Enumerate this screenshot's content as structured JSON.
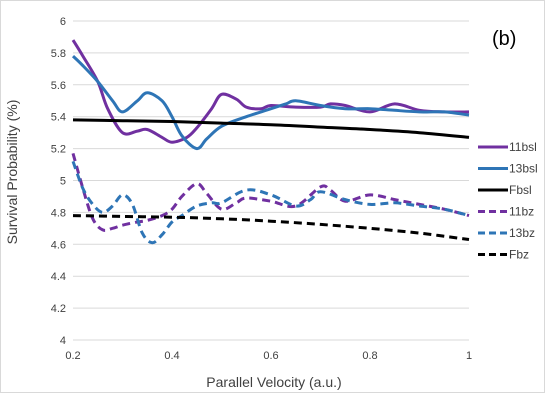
{
  "chart_data": {
    "type": "line",
    "panel_label": "(b)",
    "xlabel": "Parallel Velocity (a.u.)",
    "ylabel": "Survival Probability (%)",
    "xlim": [
      0.2,
      1.0
    ],
    "ylim": [
      4.0,
      6.0
    ],
    "x_ticks": [
      0.2,
      0.4,
      0.6,
      0.8,
      1.0
    ],
    "x_tick_labels": [
      "0.2",
      "0.4",
      "0.6",
      "0.8",
      "1"
    ],
    "y_ticks": [
      4.0,
      4.2,
      4.4,
      4.6,
      4.8,
      5.0,
      5.2,
      5.4,
      5.6,
      5.8,
      6.0
    ],
    "y_tick_labels": [
      "4",
      "4.2",
      "4.4",
      "4.6",
      "4.8",
      "5",
      "5.2",
      "5.4",
      "5.6",
      "5.8",
      "6"
    ],
    "grid": "horizontal",
    "legend_position": "right",
    "series": [
      {
        "name": "11bsl",
        "color": "#7030a0",
        "dash": "solid",
        "x": [
          0.2,
          0.22,
          0.25,
          0.27,
          0.3,
          0.33,
          0.35,
          0.38,
          0.4,
          0.43,
          0.45,
          0.48,
          0.5,
          0.53,
          0.55,
          0.58,
          0.6,
          0.65,
          0.7,
          0.72,
          0.75,
          0.8,
          0.85,
          0.9,
          0.95,
          1.0
        ],
        "y": [
          5.88,
          5.78,
          5.62,
          5.45,
          5.3,
          5.31,
          5.32,
          5.27,
          5.24,
          5.27,
          5.33,
          5.45,
          5.54,
          5.51,
          5.46,
          5.45,
          5.47,
          5.46,
          5.46,
          5.48,
          5.47,
          5.43,
          5.48,
          5.44,
          5.43,
          5.43
        ]
      },
      {
        "name": "13bsl",
        "color": "#2e75b6",
        "dash": "solid",
        "x": [
          0.2,
          0.22,
          0.25,
          0.28,
          0.3,
          0.33,
          0.35,
          0.38,
          0.4,
          0.42,
          0.45,
          0.47,
          0.5,
          0.55,
          0.6,
          0.63,
          0.65,
          0.7,
          0.75,
          0.8,
          0.85,
          0.9,
          0.95,
          1.0
        ],
        "y": [
          5.78,
          5.72,
          5.62,
          5.5,
          5.43,
          5.5,
          5.55,
          5.5,
          5.4,
          5.28,
          5.2,
          5.26,
          5.34,
          5.4,
          5.45,
          5.48,
          5.5,
          5.47,
          5.45,
          5.45,
          5.44,
          5.43,
          5.43,
          5.41
        ]
      },
      {
        "name": "Fbsl",
        "color": "#000000",
        "dash": "solid",
        "x": [
          0.2,
          0.3,
          0.4,
          0.5,
          0.6,
          0.7,
          0.8,
          0.9,
          1.0
        ],
        "y": [
          5.38,
          5.375,
          5.37,
          5.36,
          5.35,
          5.335,
          5.32,
          5.3,
          5.27
        ]
      },
      {
        "name": "11bz",
        "color": "#7030a0",
        "dash": "dashed",
        "x": [
          0.2,
          0.22,
          0.24,
          0.26,
          0.28,
          0.3,
          0.33,
          0.35,
          0.38,
          0.4,
          0.42,
          0.45,
          0.47,
          0.5,
          0.53,
          0.55,
          0.6,
          0.65,
          0.7,
          0.72,
          0.75,
          0.8,
          0.85,
          0.9,
          0.95,
          1.0
        ],
        "y": [
          5.17,
          4.95,
          4.76,
          4.69,
          4.7,
          4.72,
          4.74,
          4.75,
          4.78,
          4.82,
          4.9,
          4.98,
          4.92,
          4.82,
          4.86,
          4.89,
          4.87,
          4.84,
          4.96,
          4.94,
          4.87,
          4.91,
          4.88,
          4.85,
          4.82,
          4.78
        ]
      },
      {
        "name": "13bz",
        "color": "#2e75b6",
        "dash": "dashed",
        "x": [
          0.2,
          0.22,
          0.24,
          0.26,
          0.28,
          0.3,
          0.32,
          0.34,
          0.36,
          0.38,
          0.4,
          0.42,
          0.45,
          0.48,
          0.5,
          0.55,
          0.6,
          0.65,
          0.68,
          0.7,
          0.75,
          0.8,
          0.85,
          0.9,
          0.95,
          1.0
        ],
        "y": [
          5.12,
          4.95,
          4.85,
          4.8,
          4.84,
          4.91,
          4.85,
          4.67,
          4.61,
          4.66,
          4.74,
          4.78,
          4.84,
          4.86,
          4.86,
          4.94,
          4.91,
          4.84,
          4.88,
          4.93,
          4.88,
          4.85,
          4.86,
          4.84,
          4.82,
          4.78
        ]
      },
      {
        "name": "Fbz",
        "color": "#000000",
        "dash": "dashed",
        "x": [
          0.2,
          0.3,
          0.4,
          0.5,
          0.6,
          0.7,
          0.8,
          0.9,
          1.0
        ],
        "y": [
          4.78,
          4.775,
          4.77,
          4.76,
          4.745,
          4.725,
          4.7,
          4.67,
          4.63
        ]
      }
    ]
  }
}
